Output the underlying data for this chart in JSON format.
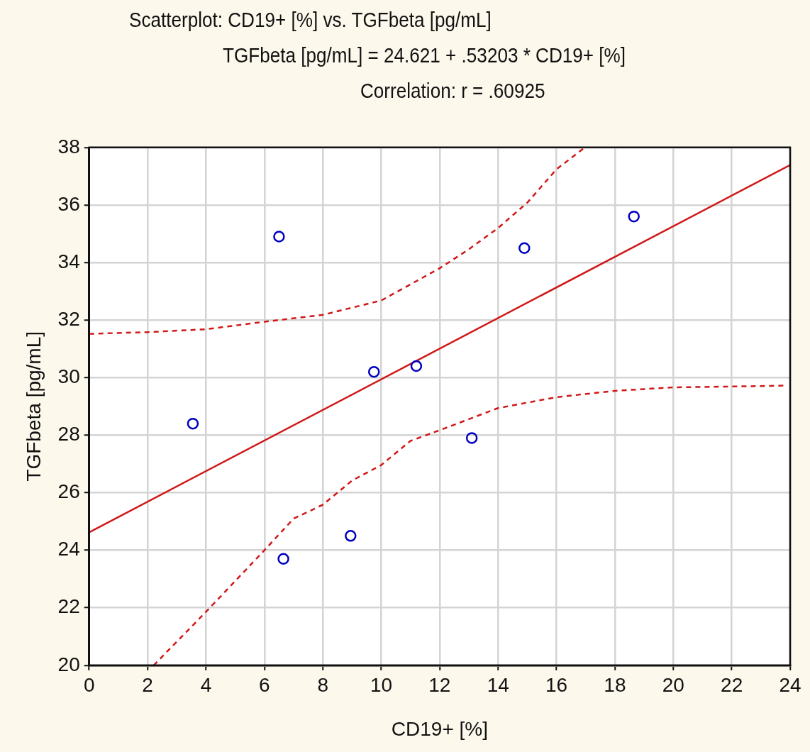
{
  "chart_data": {
    "type": "scatter",
    "title": "Scatterplot: CD19+ [%] vs. TGFbeta [pg/mL]",
    "subtitle": "TGFbeta [pg/mL] = 24.621 + .53203 * CD19+ [%]",
    "annotations": [
      "Correlation: r = .60925"
    ],
    "xlabel": "CD19+ [%]",
    "ylabel": "TGFbeta [pg/mL]",
    "xlim": [
      0,
      24
    ],
    "ylim": [
      20,
      38
    ],
    "xticks": [
      0,
      2,
      4,
      6,
      8,
      10,
      12,
      14,
      16,
      18,
      20,
      22,
      24
    ],
    "yticks": [
      20,
      22,
      24,
      26,
      28,
      30,
      32,
      34,
      36,
      38
    ],
    "grid": true,
    "legend": false,
    "marker": "circle",
    "series": [
      {
        "type": "scatter",
        "color": "#0000c0",
        "x": [
          3.55,
          6.5,
          6.65,
          8.95,
          9.75,
          11.2,
          13.1,
          14.9,
          18.65
        ],
        "values": [
          28.4,
          34.9,
          23.7,
          24.5,
          30.2,
          30.4,
          27.9,
          34.5,
          35.6
        ]
      },
      {
        "type": "line",
        "color": "#d01818",
        "line_style": "solid",
        "marker": "none",
        "x": [
          0,
          24
        ],
        "values": [
          24.621,
          37.39
        ]
      },
      {
        "type": "line",
        "color": "#d01818",
        "line_style": "dashed",
        "marker": "none",
        "x": [
          0,
          2,
          4,
          6,
          8,
          10,
          12,
          13,
          14,
          15,
          16,
          16.97
        ],
        "values": [
          31.52,
          31.58,
          31.68,
          31.94,
          32.18,
          32.68,
          33.8,
          34.46,
          35.2,
          36.08,
          37.24,
          38
        ]
      },
      {
        "type": "line",
        "color": "#d01818",
        "line_style": "dashed",
        "marker": "none",
        "x": [
          2.21,
          4,
          6,
          7,
          8,
          9,
          10,
          11,
          12,
          14,
          16,
          18,
          20,
          22,
          23.8
        ],
        "values": [
          20,
          21.86,
          24.0,
          25.1,
          25.58,
          26.42,
          26.96,
          27.8,
          28.17,
          28.94,
          29.32,
          29.54,
          29.66,
          29.69,
          29.72
        ]
      }
    ]
  }
}
